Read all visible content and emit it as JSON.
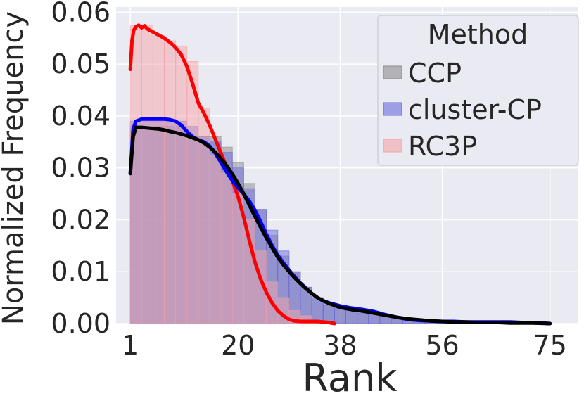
{
  "chart_data": {
    "type": "histogram-kde",
    "xlabel": "Rank",
    "ylabel": "Normalized Frequency",
    "xlim": [
      -1.5,
      80
    ],
    "ylim": [
      0,
      0.061
    ],
    "xticks": [
      1,
      20,
      38,
      56,
      75
    ],
    "yticks": [
      0.0,
      0.01,
      0.02,
      0.03,
      0.04,
      0.05,
      0.06
    ],
    "ytick_labels": [
      "0.00",
      "0.01",
      "0.02",
      "0.03",
      "0.04",
      "0.05",
      "0.06"
    ],
    "grid": true,
    "legend": {
      "title": "Method",
      "placement": "top-right"
    },
    "bin_edges": [
      1,
      3,
      5,
      7,
      9,
      11,
      13,
      15,
      17,
      19,
      21,
      23,
      25,
      27,
      29,
      31,
      33,
      35,
      37,
      39,
      41,
      43,
      45,
      47,
      49,
      51,
      53,
      55,
      57,
      59,
      61,
      63,
      65,
      67,
      69,
      71,
      73,
      75
    ],
    "series": [
      {
        "name": "CCP",
        "hist_color": "#8c8c8c",
        "line_color": "#000000",
        "hist": [
          0.038,
          0.038,
          0.038,
          0.038,
          0.038,
          0.036,
          0.036,
          0.036,
          0.034,
          0.031,
          0.027,
          0.022,
          0.017,
          0.013,
          0.01,
          0.007,
          0.005,
          0.0035,
          0.003,
          0.0025,
          0.002,
          0.0018,
          0.0015,
          0.001,
          0.0008,
          0.0006,
          0.0005,
          0.0004,
          0.0003,
          0.0003,
          0.0002,
          0.0002,
          0.0002,
          0.0001,
          0.0001,
          0.0001
        ],
        "kde_x": [
          1,
          1.5,
          2,
          3,
          4,
          5,
          6,
          7,
          8,
          9,
          10,
          11,
          12,
          13,
          14,
          15,
          16,
          17,
          18,
          19,
          20,
          21,
          22,
          23,
          24,
          25,
          26,
          27,
          28,
          29,
          30,
          31,
          32,
          33,
          34,
          35,
          36,
          37,
          38,
          40,
          42,
          44,
          46,
          48,
          50,
          52,
          54,
          56,
          58,
          60,
          62,
          64,
          66,
          68,
          70,
          72,
          75
        ],
        "kde_y": [
          0.0289,
          0.036,
          0.0378,
          0.0378,
          0.0377,
          0.0376,
          0.0375,
          0.0373,
          0.037,
          0.0368,
          0.0365,
          0.0362,
          0.0358,
          0.0354,
          0.0348,
          0.034,
          0.033,
          0.0318,
          0.0304,
          0.0288,
          0.027,
          0.025,
          0.0228,
          0.0206,
          0.0185,
          0.0165,
          0.0146,
          0.0128,
          0.0113,
          0.01,
          0.0088,
          0.0077,
          0.0067,
          0.0058,
          0.005,
          0.0044,
          0.0039,
          0.0035,
          0.0031,
          0.0027,
          0.0024,
          0.002,
          0.0016,
          0.0012,
          0.0009,
          0.0007,
          0.0005,
          0.0004,
          0.0003,
          0.0003,
          0.0002,
          0.0002,
          0.0002,
          0.0001,
          0.0001,
          0.0001,
          0.0
        ]
      },
      {
        "name": "cluster-CP",
        "hist_color": "#6a6ae0",
        "line_color": "#0000ff",
        "hist": [
          0.039,
          0.039,
          0.039,
          0.039,
          0.039,
          0.038,
          0.036,
          0.035,
          0.033,
          0.03,
          0.026,
          0.022,
          0.018,
          0.014,
          0.01,
          0.007,
          0.005,
          0.004,
          0.0035,
          0.003,
          0.0025,
          0.002,
          0.0015,
          0.001,
          0.0008,
          0.0006,
          0.0005,
          0.0004,
          0.0004,
          0.0003,
          0.0003,
          0.0003,
          0.0003,
          0.0002,
          0.0002,
          0.0001
        ],
        "kde_x": [
          1,
          1.5,
          2,
          3,
          4,
          5,
          6,
          7,
          8,
          9,
          10,
          11,
          12,
          13,
          14,
          15,
          16,
          17,
          18,
          19,
          20,
          21,
          22,
          23,
          24,
          25,
          26,
          27,
          28,
          29,
          30,
          31,
          32,
          33,
          34,
          35,
          36,
          37,
          38,
          40,
          42,
          44,
          46,
          48,
          50,
          52,
          54,
          56,
          58,
          60,
          62,
          64,
          66,
          68,
          70,
          72,
          75
        ],
        "kde_y": [
          0.029,
          0.0375,
          0.039,
          0.0394,
          0.0394,
          0.0394,
          0.0394,
          0.0394,
          0.0393,
          0.039,
          0.0382,
          0.037,
          0.036,
          0.0354,
          0.035,
          0.0342,
          0.0328,
          0.031,
          0.0292,
          0.0275,
          0.0262,
          0.025,
          0.0236,
          0.0218,
          0.0196,
          0.0172,
          0.015,
          0.0132,
          0.0117,
          0.0103,
          0.009,
          0.0078,
          0.0068,
          0.0058,
          0.005,
          0.0044,
          0.004,
          0.0037,
          0.0034,
          0.003,
          0.0027,
          0.0023,
          0.0017,
          0.0012,
          0.0008,
          0.0006,
          0.0005,
          0.0004,
          0.0004,
          0.0003,
          0.0003,
          0.0003,
          0.0003,
          0.0003,
          0.0002,
          0.0002,
          0.0
        ]
      },
      {
        "name": "RC3P",
        "hist_color": "#f4a3a8",
        "line_color": "#ff0000",
        "hist": [
          0.0575,
          0.0575,
          0.0555,
          0.0545,
          0.0535,
          0.0505,
          0.0415,
          0.0325,
          0.029,
          0.025,
          0.02,
          0.014,
          0.008,
          0.005,
          0.0025,
          0.0015,
          0.0005,
          0.0003
        ],
        "kde_x": [
          1,
          1.3,
          1.6,
          2,
          2.5,
          3,
          3.5,
          4,
          5,
          6,
          7,
          8,
          9,
          10,
          11,
          12,
          13,
          14,
          15,
          16,
          17,
          18,
          19,
          20,
          21,
          22,
          23,
          24,
          25,
          26,
          27,
          28,
          29,
          30,
          31,
          32,
          33,
          34,
          35,
          36,
          37
        ],
        "kde_y": [
          0.049,
          0.0545,
          0.0565,
          0.0572,
          0.0575,
          0.057,
          0.0574,
          0.0568,
          0.0562,
          0.0556,
          0.055,
          0.0542,
          0.0532,
          0.0518,
          0.0495,
          0.0462,
          0.0425,
          0.0405,
          0.0382,
          0.0355,
          0.0328,
          0.0302,
          0.0275,
          0.0245,
          0.0205,
          0.016,
          0.0118,
          0.0085,
          0.006,
          0.004,
          0.0025,
          0.0015,
          0.0008,
          0.0005,
          0.0004,
          0.0004,
          0.0004,
          0.0004,
          0.0003,
          0.0002,
          0.0
        ]
      }
    ]
  }
}
